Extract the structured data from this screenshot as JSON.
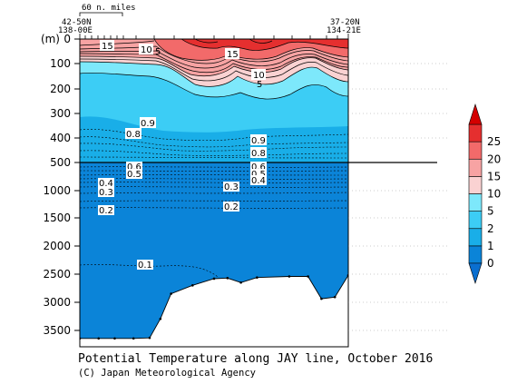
{
  "chart_data": {
    "type": "section-contour",
    "title": "Potential Temperature along JAY line, October 2016",
    "credit": "(C) Japan Meteorological Agency",
    "ylabel": "(m)",
    "scale_label": "60 n. miles",
    "left_station": {
      "line1": "42-50N",
      "line2": "138-00E"
    },
    "right_station": {
      "line1": "37-20N",
      "line2": "134-21E"
    },
    "y_upper_ticks": [
      "0",
      "100",
      "200",
      "300",
      "400",
      "500"
    ],
    "y_lower_ticks": [
      "1000",
      "1500",
      "2000",
      "2500",
      "3000",
      "3500"
    ],
    "y_upper_range": [
      0,
      500
    ],
    "y_lower_range": [
      500,
      3800
    ],
    "colorbar": {
      "levels": [
        "0",
        "1",
        "2",
        "5",
        "10",
        "15",
        "20",
        "25"
      ],
      "colors": [
        "#0b84d8",
        "#19aee8",
        "#3ccdf5",
        "#7de8fb",
        "#fad2d2",
        "#f7a3a3",
        "#f26a6a",
        "#e52f2f"
      ]
    },
    "contour_labels_upper": [
      "15",
      "10",
      "5",
      "15",
      "10",
      "5",
      "0.9",
      "0.8",
      "0.9",
      "0.8"
    ],
    "contour_labels_lower": [
      "0.6",
      "0.5",
      "0.4",
      "0.3",
      "0.2",
      "0.6",
      "0.5",
      "0.4",
      "0.3",
      "0.2",
      "0.1"
    ],
    "bottom_depth": [
      [
        0.0,
        3650
      ],
      [
        0.07,
        3650
      ],
      [
        0.13,
        3650
      ],
      [
        0.2,
        3650
      ],
      [
        0.26,
        3640
      ],
      [
        0.3,
        3300
      ],
      [
        0.34,
        2850
      ],
      [
        0.42,
        2700
      ],
      [
        0.5,
        2580
      ],
      [
        0.55,
        2570
      ],
      [
        0.6,
        2650
      ],
      [
        0.66,
        2560
      ],
      [
        0.78,
        2540
      ],
      [
        0.85,
        2540
      ],
      [
        0.9,
        2940
      ],
      [
        0.95,
        2910
      ],
      [
        1.0,
        2520
      ]
    ]
  }
}
